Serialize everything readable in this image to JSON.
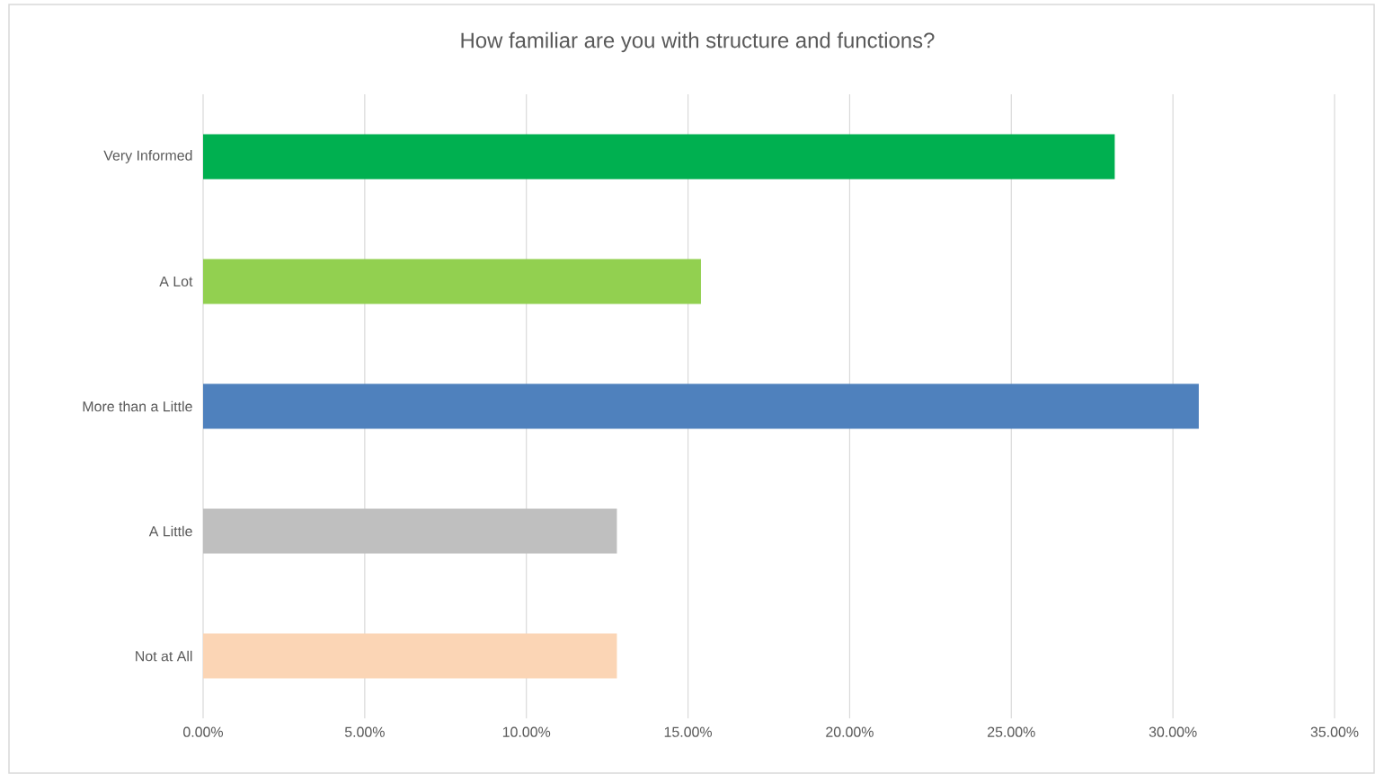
{
  "chart_data": {
    "type": "bar",
    "orientation": "horizontal",
    "title": "How familiar are you with structure and functions?",
    "categories": [
      "Very Informed",
      "A Lot",
      "More than a Little",
      "A Little",
      "Not at All"
    ],
    "values": [
      28.2,
      15.4,
      30.8,
      12.8,
      12.8
    ],
    "colors": [
      "#00b050",
      "#92d050",
      "#4f81bd",
      "#bfbfbf",
      "#fbd5b5"
    ],
    "xlim": [
      0,
      35
    ],
    "xticks": [
      {
        "value": 0,
        "label": "0.00%"
      },
      {
        "value": 5,
        "label": "5.00%"
      },
      {
        "value": 10,
        "label": "10.00%"
      },
      {
        "value": 15,
        "label": "15.00%"
      },
      {
        "value": 20,
        "label": "20.00%"
      },
      {
        "value": 25,
        "label": "25.00%"
      },
      {
        "value": 30,
        "label": "30.00%"
      },
      {
        "value": 35,
        "label": "35.00%"
      }
    ],
    "grid": "x"
  }
}
